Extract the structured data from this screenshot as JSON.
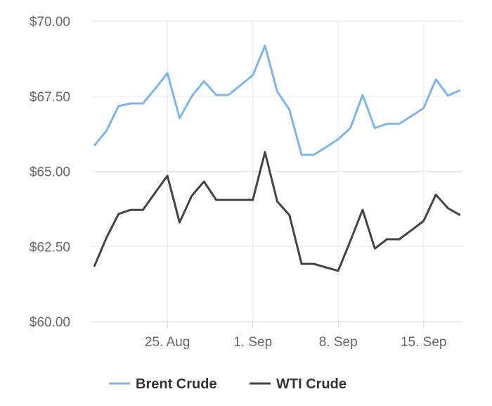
{
  "chart_data": {
    "type": "line",
    "categories": [
      null,
      null,
      null,
      null,
      null,
      null,
      "25. Aug",
      null,
      null,
      null,
      null,
      null,
      null,
      "1. Sep",
      null,
      null,
      null,
      null,
      null,
      null,
      "8. Sep",
      null,
      null,
      null,
      null,
      null,
      null,
      "15. Sep",
      null,
      null,
      null
    ],
    "series": [
      {
        "name": "Brent Crude",
        "color": "#7cb5ec",
        "values": [
          65.85,
          66.35,
          67.17,
          67.26,
          67.26,
          67.75,
          68.27,
          66.77,
          67.5,
          68.0,
          67.54,
          67.54,
          67.87,
          68.2,
          69.18,
          67.66,
          67.05,
          65.55,
          65.55,
          65.8,
          66.07,
          66.44,
          67.54,
          66.44,
          66.58,
          66.58,
          66.84,
          67.1,
          68.06,
          67.52,
          67.7
        ]
      },
      {
        "name": "WTI Crude",
        "color": "#434348",
        "values": [
          61.83,
          62.79,
          63.58,
          63.72,
          63.72,
          64.29,
          64.85,
          63.3,
          64.19,
          64.66,
          64.05,
          64.05,
          64.05,
          64.05,
          65.64,
          64.0,
          63.54,
          61.92,
          61.92,
          61.8,
          61.69,
          62.69,
          63.72,
          62.43,
          62.74,
          62.74,
          63.04,
          63.35,
          64.22,
          63.77,
          63.54
        ]
      }
    ],
    "ylim": [
      60,
      70
    ],
    "yticks": [
      {
        "value": 60,
        "label": "$60.00"
      },
      {
        "value": 62.5,
        "label": "$62.50"
      },
      {
        "value": 65,
        "label": "$65.00"
      },
      {
        "value": 67.5,
        "label": "$67.50"
      },
      {
        "value": 70,
        "label": "$70.00"
      }
    ],
    "grid": true,
    "legend": "bottom"
  }
}
